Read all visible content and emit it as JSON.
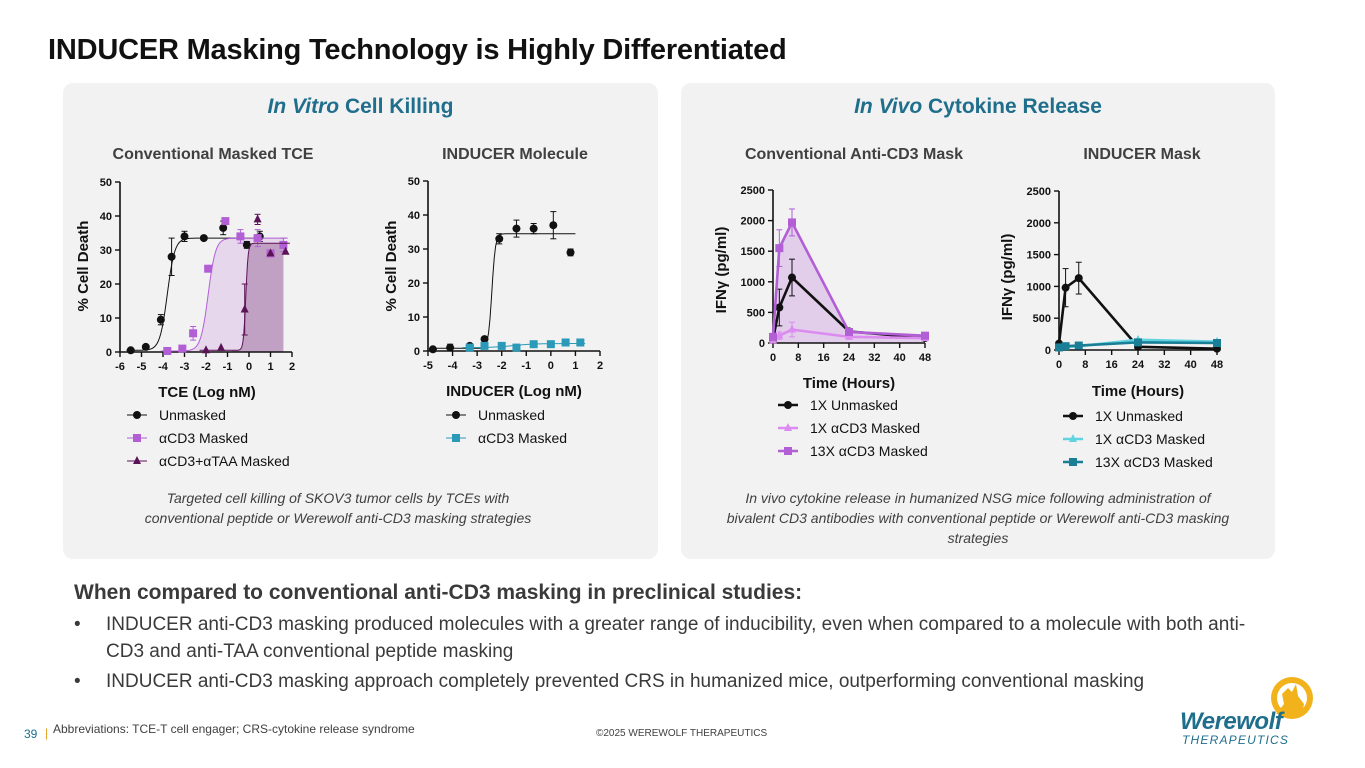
{
  "title": "INDUCER Masking Technology is Highly Differentiated",
  "panels": {
    "left": {
      "heading_italic": "In Vitro",
      "heading_rest": " Cell Killing",
      "caption_line1": "Targeted cell killing of SKOV3 tumor cells by TCEs with",
      "caption_line2": "conventional peptide or Werewolf anti-CD3 masking strategies"
    },
    "right": {
      "heading_italic": "In Vivo",
      "heading_rest": " Cytokine Release",
      "caption_line1": "In vivo cytokine release in humanized NSG mice following administration of",
      "caption_line2": "bivalent CD3 antibodies with conventional peptide or Werewolf anti-CD3 masking",
      "caption_line3": "strategies"
    }
  },
  "colors": {
    "black": "#111111",
    "purple": "#b25fd6",
    "light_purple": "#dc8cf0",
    "dark_purple": "#5c1257",
    "teal": "#2a9ab8",
    "light_cyan": "#5fd3e0",
    "dark_teal": "#1a7f96"
  },
  "chart_data": [
    {
      "type": "scatter",
      "title": "Conventional Masked TCE",
      "xlabel": "TCE (Log nM)",
      "ylabel": "% Cell  Death",
      "xlim": [
        -6,
        2
      ],
      "ylim": [
        0,
        50
      ],
      "xticks": [
        "-6",
        "-5",
        "-4",
        "-3",
        "-2",
        "-1",
        "0",
        "1",
        "2"
      ],
      "yticks": [
        "0",
        "10",
        "20",
        "30",
        "40",
        "50"
      ],
      "series": [
        {
          "name": "Unmasked",
          "marker": "circle",
          "color": "#111111",
          "x": [
            -5.5,
            -4.8,
            -4.1,
            -3.6,
            -3.0,
            -2.1,
            -1.2,
            -0.1,
            0.5
          ],
          "y": [
            0.5,
            1.5,
            9.5,
            28,
            34,
            33.5,
            36.5,
            31.5,
            34
          ],
          "err": [
            0,
            0,
            1.5,
            5.5,
            1.5,
            0,
            2,
            1,
            1.5
          ],
          "fit": {
            "bottom": 0.5,
            "top": 33.5,
            "ec50": -3.8,
            "hill": 2.5
          }
        },
        {
          "name": "αCD3 Masked",
          "marker": "square",
          "color": "#b25fd6",
          "x": [
            -3.8,
            -3.1,
            -2.6,
            -1.9,
            -1.1,
            -0.4,
            0.4,
            1.0,
            1.6
          ],
          "y": [
            0.3,
            1,
            5.5,
            24.5,
            38.5,
            34,
            33.5,
            29,
            31.5
          ],
          "err": [
            0,
            0.5,
            2,
            0,
            0,
            2,
            2.5,
            0,
            2
          ],
          "fit": {
            "bottom": 0.3,
            "top": 33.5,
            "ec50": -1.9,
            "hill": 2.5
          }
        },
        {
          "name": "αCD3+αTAA Masked",
          "marker": "triangle",
          "color": "#5c1257",
          "x": [
            -2.0,
            -1.3,
            -0.2,
            0.4,
            1.0,
            1.7
          ],
          "y": [
            0.5,
            1.2,
            12.5,
            39,
            29,
            29.5
          ],
          "err": [
            0,
            0,
            7.5,
            1.5,
            0,
            0
          ],
          "fit": {
            "bottom": 0.5,
            "top": 32,
            "ec50": -0.15,
            "hill": 8
          }
        }
      ]
    },
    {
      "type": "scatter",
      "title": "INDUCER Molecule",
      "xlabel": "INDUCER (Log nM)",
      "ylabel": "% Cell Death",
      "xlim": [
        -5,
        2
      ],
      "ylim": [
        0,
        50
      ],
      "xticks": [
        "-5",
        "-4",
        "-3",
        "-2",
        "-1",
        "0",
        "1",
        "2"
      ],
      "yticks": [
        "0",
        "10",
        "20",
        "30",
        "40",
        "50"
      ],
      "series": [
        {
          "name": "Unmasked",
          "marker": "circle",
          "color": "#111111",
          "x": [
            -4.8,
            -4.1,
            -3.3,
            -2.7,
            -2.1,
            -1.4,
            -0.7,
            0.1,
            0.8
          ],
          "y": [
            0.5,
            1,
            1.5,
            3.5,
            33,
            36,
            36,
            37,
            29
          ],
          "err": [
            0.5,
            1,
            0,
            0,
            1.5,
            2.5,
            1.5,
            4,
            1
          ],
          "fit": {
            "bottom": 0.8,
            "top": 34.5,
            "ec50": -2.4,
            "hill": 6
          }
        },
        {
          "name": "αCD3 Masked",
          "marker": "square",
          "color": "#2a9ab8",
          "x": [
            -3.3,
            -2.7,
            -2.0,
            -1.4,
            -0.7,
            0.0,
            0.6,
            1.2
          ],
          "y": [
            1,
            1.5,
            1.5,
            1,
            2,
            2,
            2.5,
            2.5
          ],
          "err": [
            0,
            0,
            0.5,
            0,
            0.5,
            0,
            0,
            1
          ],
          "fit": {
            "bottom": 1,
            "top": 2.2,
            "ec50": -1.5,
            "hill": 1
          }
        }
      ]
    },
    {
      "type": "line",
      "title": "Conventional Anti-CD3 Mask",
      "xlabel": "Time (Hours)",
      "ylabel": "IFNγ (pg/ml)",
      "xlim": [
        0,
        48
      ],
      "ylim": [
        0,
        2500
      ],
      "xticks": [
        "0",
        "8",
        "16",
        "24",
        "32",
        "40",
        "48"
      ],
      "yticks": [
        "0",
        "500",
        "1000",
        "1500",
        "2000",
        "2500"
      ],
      "series": [
        {
          "name": "1X Unmasked",
          "marker": "circle",
          "color": "#111111",
          "x": [
            0,
            2,
            6,
            24,
            48
          ],
          "y": [
            60,
            580,
            1070,
            190,
            80
          ],
          "err": [
            0,
            300,
            300,
            0,
            0
          ]
        },
        {
          "name": "1X αCD3 Masked",
          "marker": "triangle",
          "color": "#dc8cf0",
          "x": [
            0,
            2,
            6,
            24,
            48
          ],
          "y": [
            40,
            120,
            220,
            100,
            80
          ],
          "err": [
            0,
            60,
            120,
            0,
            0
          ]
        },
        {
          "name": "13X αCD3 Masked",
          "marker": "square",
          "color": "#b25fd6",
          "x": [
            0,
            2,
            6,
            24,
            48
          ],
          "y": [
            100,
            1550,
            1970,
            180,
            120
          ],
          "err": [
            0,
            300,
            220,
            0,
            0
          ]
        }
      ]
    },
    {
      "type": "line",
      "title": "INDUCER Mask",
      "xlabel": "Time (Hours)",
      "ylabel": "IFNγ (pg/ml)",
      "xlim": [
        0,
        48
      ],
      "ylim": [
        0,
        2500
      ],
      "xticks": [
        "0",
        "8",
        "16",
        "24",
        "32",
        "40",
        "48"
      ],
      "yticks": [
        "0",
        "500",
        "1000",
        "1500",
        "2000",
        "2500"
      ],
      "series": [
        {
          "name": "1X Unmasked",
          "marker": "circle",
          "color": "#111111",
          "x": [
            0,
            2,
            6,
            24,
            48
          ],
          "y": [
            100,
            980,
            1130,
            50,
            20
          ],
          "err": [
            0,
            300,
            250,
            0,
            0
          ]
        },
        {
          "name": "1X αCD3 Masked",
          "marker": "triangle",
          "color": "#5fd3e0",
          "x": [
            0,
            2,
            6,
            24,
            48
          ],
          "y": [
            30,
            50,
            60,
            160,
            130
          ],
          "err": [
            0,
            0,
            0,
            0,
            0
          ]
        },
        {
          "name": "13X αCD3 Masked",
          "marker": "square",
          "color": "#1a7f96",
          "x": [
            0,
            2,
            6,
            24,
            48
          ],
          "y": [
            40,
            60,
            70,
            120,
            110
          ],
          "err": [
            0,
            0,
            0,
            0,
            0
          ]
        }
      ]
    }
  ],
  "summary": {
    "heading": "When compared to conventional anti-CD3 masking in preclinical studies:",
    "bullet_symbol": "•",
    "bullets": [
      "INDUCER anti-CD3 masking produced molecules with a greater range of inducibility, even when compared to a molecule with both anti-CD3 and anti-TAA conventional peptide masking",
      "INDUCER anti-CD3 masking approach completely prevented CRS in humanized mice, outperforming conventional masking"
    ]
  },
  "footer": {
    "page": "39",
    "separator": "|",
    "abbreviations": "Abbreviations:  TCE-T cell engager; CRS-cytokine release syndrome",
    "copyright": "©2025 WEREWOLF THERAPEUTICS"
  },
  "logo": {
    "word": "Werewolf",
    "sub": "THERAPEUTICS",
    "icon": "wolf-moon-icon"
  }
}
